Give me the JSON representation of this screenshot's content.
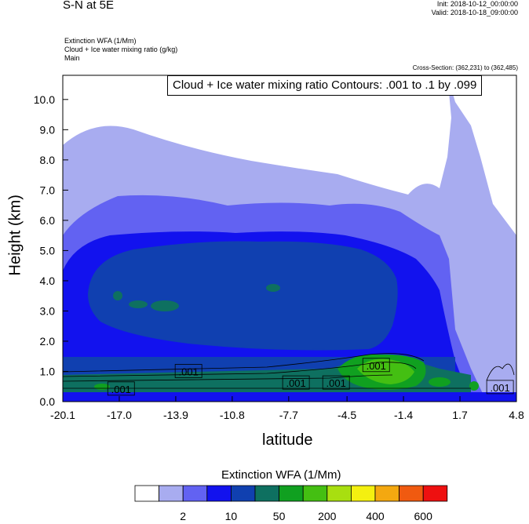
{
  "header": {
    "title": "S-N at 5E",
    "init": "Init: 2018-10-12_00:00:00",
    "valid": "Valid: 2018-10-18_09:00:00",
    "field1": "Extinction WFA   (1/Mm)",
    "field2": "Cloud + Ice water mixing ratio   (g/kg)",
    "field3": "Main",
    "cross_section": "Cross-Section: (362,231) to (362,485)"
  },
  "contour_label": "Cloud + Ice water mixing ratio Contours: .001 to .1 by .099",
  "colorbar": {
    "title": "Extinction WFA  (1/Mm)",
    "colors": [
      "#ffffff",
      "#a8acf0",
      "#6262f2",
      "#1212ee",
      "#1040b0",
      "#0e7060",
      "#10a020",
      "#44bf12",
      "#a8df10",
      "#f4f010",
      "#f4a810",
      "#f05a10",
      "#ee1010"
    ],
    "labels": [
      {
        "text": "2",
        "index": 1
      },
      {
        "text": "10",
        "index": 3
      },
      {
        "text": "50",
        "index": 5
      },
      {
        "text": "200",
        "index": 7
      },
      {
        "text": "400",
        "index": 9
      },
      {
        "text": "600",
        "index": 11
      }
    ]
  },
  "chart_data": {
    "type": "heatmap",
    "xlabel": "latitude",
    "ylabel": "Height (km)",
    "xlim": [
      -20.1,
      4.8
    ],
    "ylim": [
      0.0,
      10.8
    ],
    "xticks": [
      "-20.1",
      "-17.0",
      "-13.9",
      "-10.8",
      "-7.7",
      "-4.5",
      "-1.4",
      "1.7",
      "4.8"
    ],
    "xtick_values": [
      -20.1,
      -17.0,
      -13.9,
      -10.8,
      -7.7,
      -4.5,
      -1.4,
      1.7,
      4.8
    ],
    "yticks": [
      "0.0",
      "1.0",
      "2.0",
      "3.0",
      "4.0",
      "5.0",
      "6.0",
      "7.0",
      "8.0",
      "9.0",
      "10.0"
    ],
    "ytick_values": [
      0,
      1,
      2,
      3,
      4,
      5,
      6,
      7,
      8,
      9,
      10
    ],
    "contour_labels": [
      {
        "text": ".001",
        "x": -16.9,
        "y": 0.42
      },
      {
        "text": ".001",
        "x": -13.2,
        "y": 1.0
      },
      {
        "text": ".001",
        "x": -7.3,
        "y": 0.62
      },
      {
        "text": ".001",
        "x": -5.1,
        "y": 0.62
      },
      {
        "text": ".001",
        "x": -2.9,
        "y": 1.2
      },
      {
        "text": ".001",
        "x": 3.9,
        "y": 0.47
      }
    ]
  }
}
